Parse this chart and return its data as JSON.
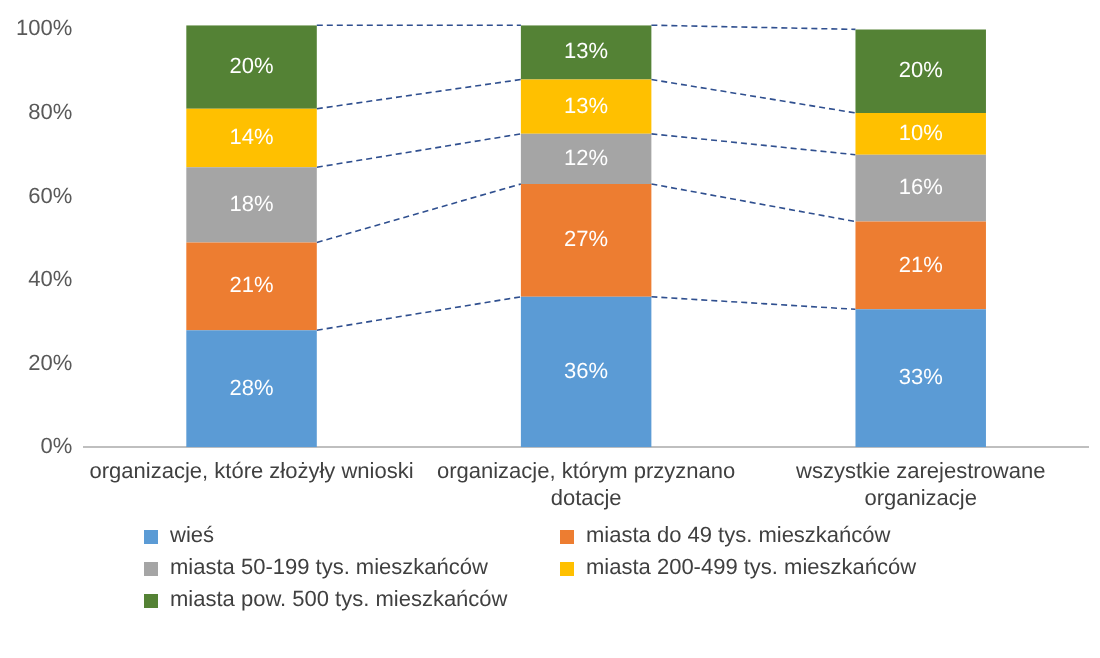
{
  "chart_data": {
    "type": "bar",
    "stacked": true,
    "categories": [
      "organizacje, które złożyły wnioski",
      "organizacje, którym przyznano dotacje",
      "wszystkie zarejestrowane organizacje"
    ],
    "series": [
      {
        "name": "wieś",
        "color": "#5b9bd5",
        "values": [
          28,
          36,
          33
        ],
        "value_labels": [
          "28%",
          "36%",
          "33%"
        ]
      },
      {
        "name": "miasta do 49 tys. mieszkańców",
        "color": "#ed7d31",
        "values": [
          21,
          27,
          21
        ],
        "value_labels": [
          "21%",
          "27%",
          "21%"
        ]
      },
      {
        "name": "miasta 50-199 tys. mieszkańców",
        "color": "#a5a5a5",
        "values": [
          18,
          12,
          16
        ],
        "value_labels": [
          "18%",
          "12%",
          "16%"
        ]
      },
      {
        "name": "miasta 200-499 tys. mieszkańców",
        "color": "#ffc000",
        "values": [
          14,
          13,
          10
        ],
        "value_labels": [
          "14%",
          "13%",
          "10%"
        ]
      },
      {
        "name": "miasta pow. 500 tys. mieszkańców",
        "color": "#548235",
        "values": [
          20,
          13,
          20
        ],
        "value_labels": [
          "20%",
          "13%",
          "20%"
        ]
      }
    ],
    "ylim": [
      0,
      101
    ],
    "yticks": [
      {
        "value": 0,
        "label": "0%"
      },
      {
        "value": 20,
        "label": "20%"
      },
      {
        "value": 40,
        "label": "40%"
      },
      {
        "value": 60,
        "label": "60%"
      },
      {
        "value": 80,
        "label": "80%"
      },
      {
        "value": 100,
        "label": "100%"
      }
    ],
    "grid": false,
    "legend": "bottom"
  }
}
